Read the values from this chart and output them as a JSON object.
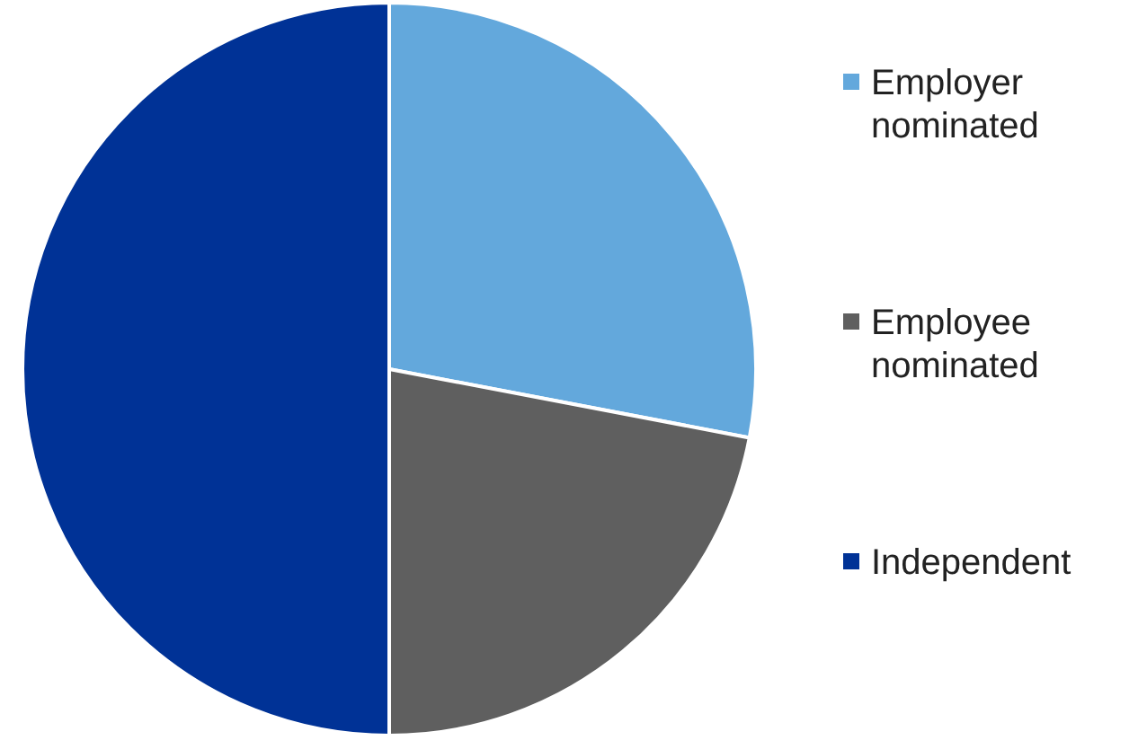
{
  "chart_data": {
    "type": "pie",
    "categories": [
      "Employer nominated",
      "Employee nominated",
      "Independent"
    ],
    "values": [
      28,
      22,
      50
    ],
    "colors": [
      "#63a8dc",
      "#5f5f5f",
      "#003296"
    ],
    "legend": "right"
  }
}
